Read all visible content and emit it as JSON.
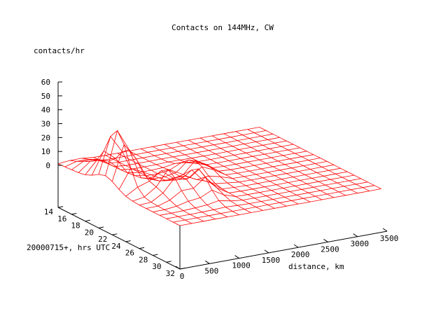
{
  "chart_data": {
    "type": "surface",
    "title": "Contacts on 144MHz, CW",
    "zlabel": "contacts/hr",
    "ylabel": "20000715+, hrs UTC",
    "xlabel": "distance, km",
    "x_ticks": [
      "0",
      "500",
      "1000",
      "1500",
      "2000",
      "2500",
      "3000",
      "3500"
    ],
    "y_ticks": [
      "14",
      "16",
      "18",
      "20",
      "22",
      "24",
      "26",
      "28",
      "30",
      "32"
    ],
    "z_ticks": [
      "0",
      "10",
      "20",
      "30",
      "40",
      "50",
      "60"
    ],
    "xlim": [
      0,
      3500
    ],
    "ylim": [
      14,
      32
    ],
    "zlim": [
      -30,
      60
    ],
    "grid": false,
    "x_step": 200,
    "y_step": 1,
    "series_color": "#ff0000",
    "peaks": [
      {
        "x": 250,
        "y": 21,
        "z": 42
      },
      {
        "x": 600,
        "y": 25,
        "z": 18
      },
      {
        "x": 1000,
        "y": 26,
        "z": 18
      },
      {
        "x": 1450,
        "y": 22,
        "z": 12
      },
      {
        "x": 300,
        "y": 17,
        "z": 8
      }
    ]
  }
}
